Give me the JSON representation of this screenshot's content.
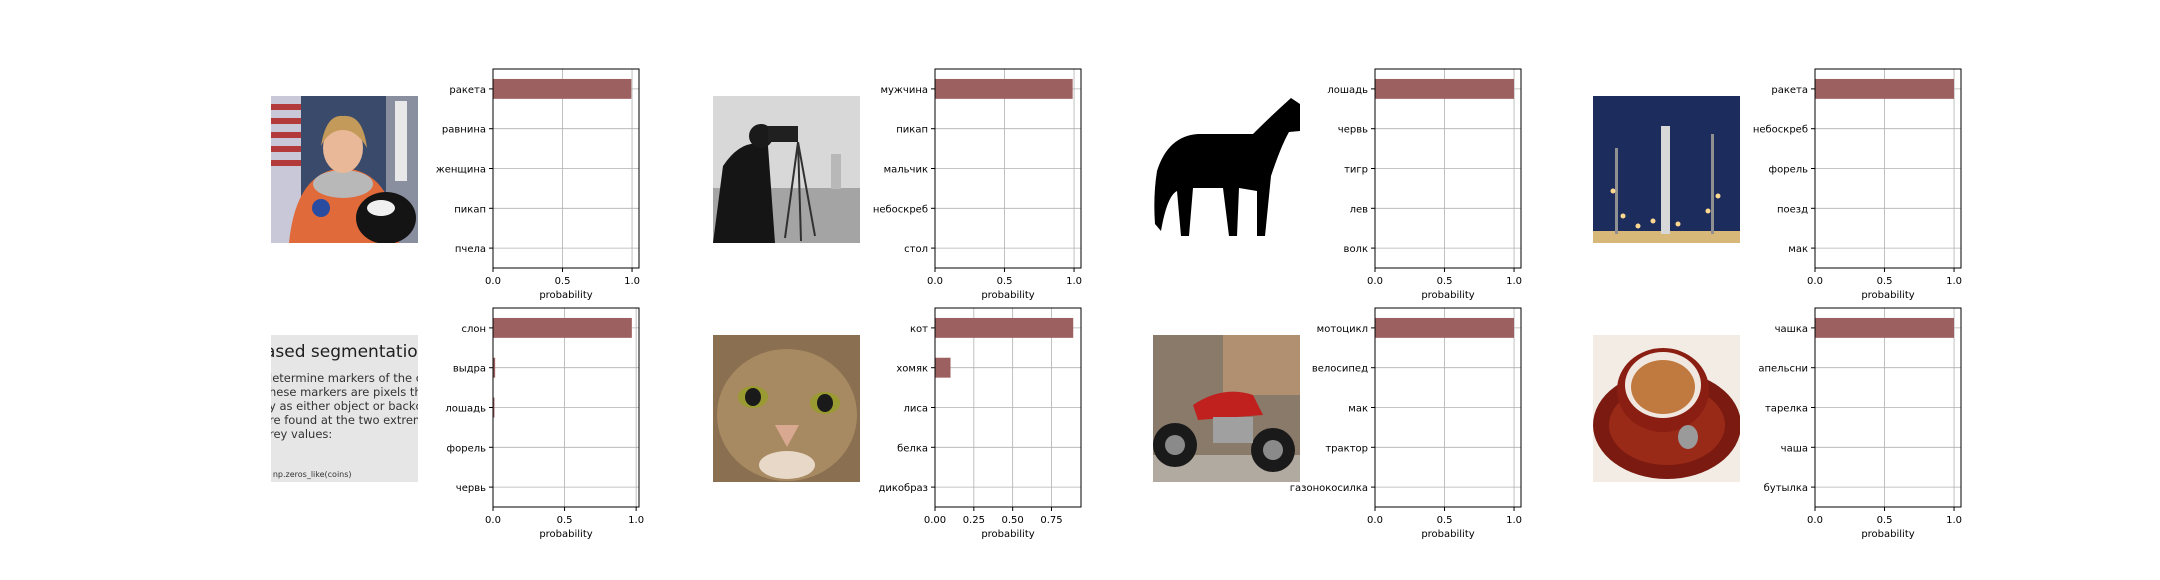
{
  "colors": {
    "bar": "#9d6060",
    "grid": "#b0b0b0",
    "axis": "#000000"
  },
  "chart_data": [
    {
      "type": "bar",
      "orientation": "horizontal",
      "image": "astronaut photo",
      "categories": [
        "ракета",
        "равнина",
        "женщина",
        "пикап",
        "пчела"
      ],
      "values": [
        0.995,
        0.002,
        0.001,
        0.001,
        0.001
      ],
      "xlabel": "probability",
      "xlim": [
        0,
        1.05
      ],
      "xticks": [
        0,
        0.5,
        1
      ],
      "xtick_labels": [
        "0.0",
        "0.5",
        "1.0"
      ],
      "grid": true
    },
    {
      "type": "bar",
      "orientation": "horizontal",
      "image": "cameraman photo",
      "categories": [
        "мужчина",
        "пикап",
        "мальчик",
        "небоскреб",
        "стол"
      ],
      "values": [
        0.99,
        0.003,
        0.002,
        0.001,
        0.001
      ],
      "xlabel": "probability",
      "xlim": [
        0,
        1.05
      ],
      "xticks": [
        0,
        0.5,
        1
      ],
      "xtick_labels": [
        "0.0",
        "0.5",
        "1.0"
      ],
      "grid": true
    },
    {
      "type": "bar",
      "orientation": "horizontal",
      "image": "horse silhouette",
      "categories": [
        "лошадь",
        "червь",
        "тигр",
        "лев",
        "волк"
      ],
      "values": [
        1.0,
        0.0,
        0.0,
        0.0,
        0.0
      ],
      "xlabel": "probability",
      "xlim": [
        0,
        1.05
      ],
      "xticks": [
        0,
        0.5,
        1
      ],
      "xtick_labels": [
        "0.0",
        "0.5",
        "1.0"
      ],
      "grid": true
    },
    {
      "type": "bar",
      "orientation": "horizontal",
      "image": "rocket launch pad",
      "categories": [
        "ракета",
        "небоскреб",
        "форель",
        "поезд",
        "мак"
      ],
      "values": [
        1.0,
        0.0,
        0.0,
        0.0,
        0.0
      ],
      "xlabel": "probability",
      "xlim": [
        0,
        1.05
      ],
      "xticks": [
        0,
        0.5,
        1
      ],
      "xtick_labels": [
        "0.0",
        "0.5",
        "1.0"
      ],
      "grid": true
    },
    {
      "type": "bar",
      "orientation": "horizontal",
      "image": "text page",
      "categories": [
        "слон",
        "выдра",
        "лошадь",
        "форель",
        "червь"
      ],
      "values": [
        0.97,
        0.015,
        0.01,
        0.002,
        0.001
      ],
      "xlabel": "probability",
      "xlim": [
        0,
        1.02
      ],
      "xticks": [
        0,
        0.5,
        1
      ],
      "xtick_labels": [
        "0.0",
        "0.5",
        "1.0"
      ],
      "grid": true
    },
    {
      "type": "bar",
      "orientation": "horizontal",
      "image": "cat face",
      "categories": [
        "кот",
        "хомяк",
        "лиса",
        "белка",
        "дикобраз"
      ],
      "values": [
        0.89,
        0.1,
        0.003,
        0.002,
        0.001
      ],
      "xlabel": "probability",
      "xlim": [
        0,
        0.94
      ],
      "xticks": [
        0,
        0.25,
        0.5,
        0.75
      ],
      "xtick_labels": [
        "0.00",
        "0.25",
        "0.50",
        "0.75"
      ],
      "grid": true
    },
    {
      "type": "bar",
      "orientation": "horizontal",
      "image": "red motorcycle",
      "categories": [
        "мотоцикл",
        "велосипед",
        "мак",
        "трактор",
        "газонокосилка"
      ],
      "values": [
        1.0,
        0.0,
        0.0,
        0.0,
        0.0
      ],
      "xlabel": "probability",
      "xlim": [
        0,
        1.05
      ],
      "xticks": [
        0,
        0.5,
        1
      ],
      "xtick_labels": [
        "0.0",
        "0.5",
        "1.0"
      ],
      "grid": true
    },
    {
      "type": "bar",
      "orientation": "horizontal",
      "image": "coffee cup",
      "categories": [
        "чашка",
        "апельсни",
        "тарелка",
        "чаша",
        "бутылка"
      ],
      "values": [
        1.0,
        0.0,
        0.0,
        0.0,
        0.0
      ],
      "xlabel": "probability",
      "xlim": [
        0,
        1.05
      ],
      "xticks": [
        0,
        0.5,
        1
      ],
      "xtick_labels": [
        "0.0",
        "0.5",
        "1.0"
      ],
      "grid": true
    }
  ],
  "images": [
    {
      "name": "astronaut-photo"
    },
    {
      "name": "cameraman-photo"
    },
    {
      "name": "horse-silhouette"
    },
    {
      "name": "rocket-photo"
    },
    {
      "name": "text-page-photo",
      "heading": "ased segmentation",
      "lines": [
        "letermine markers of the c",
        "hese markers are pixels tha",
        "y as either object or backc",
        "re found at the two extrem",
        "rey values:"
      ],
      "code": "r np.zeros_like(coins)"
    },
    {
      "name": "cat-photo"
    },
    {
      "name": "motorcycle-photo"
    },
    {
      "name": "coffee-cup-photo"
    }
  ]
}
